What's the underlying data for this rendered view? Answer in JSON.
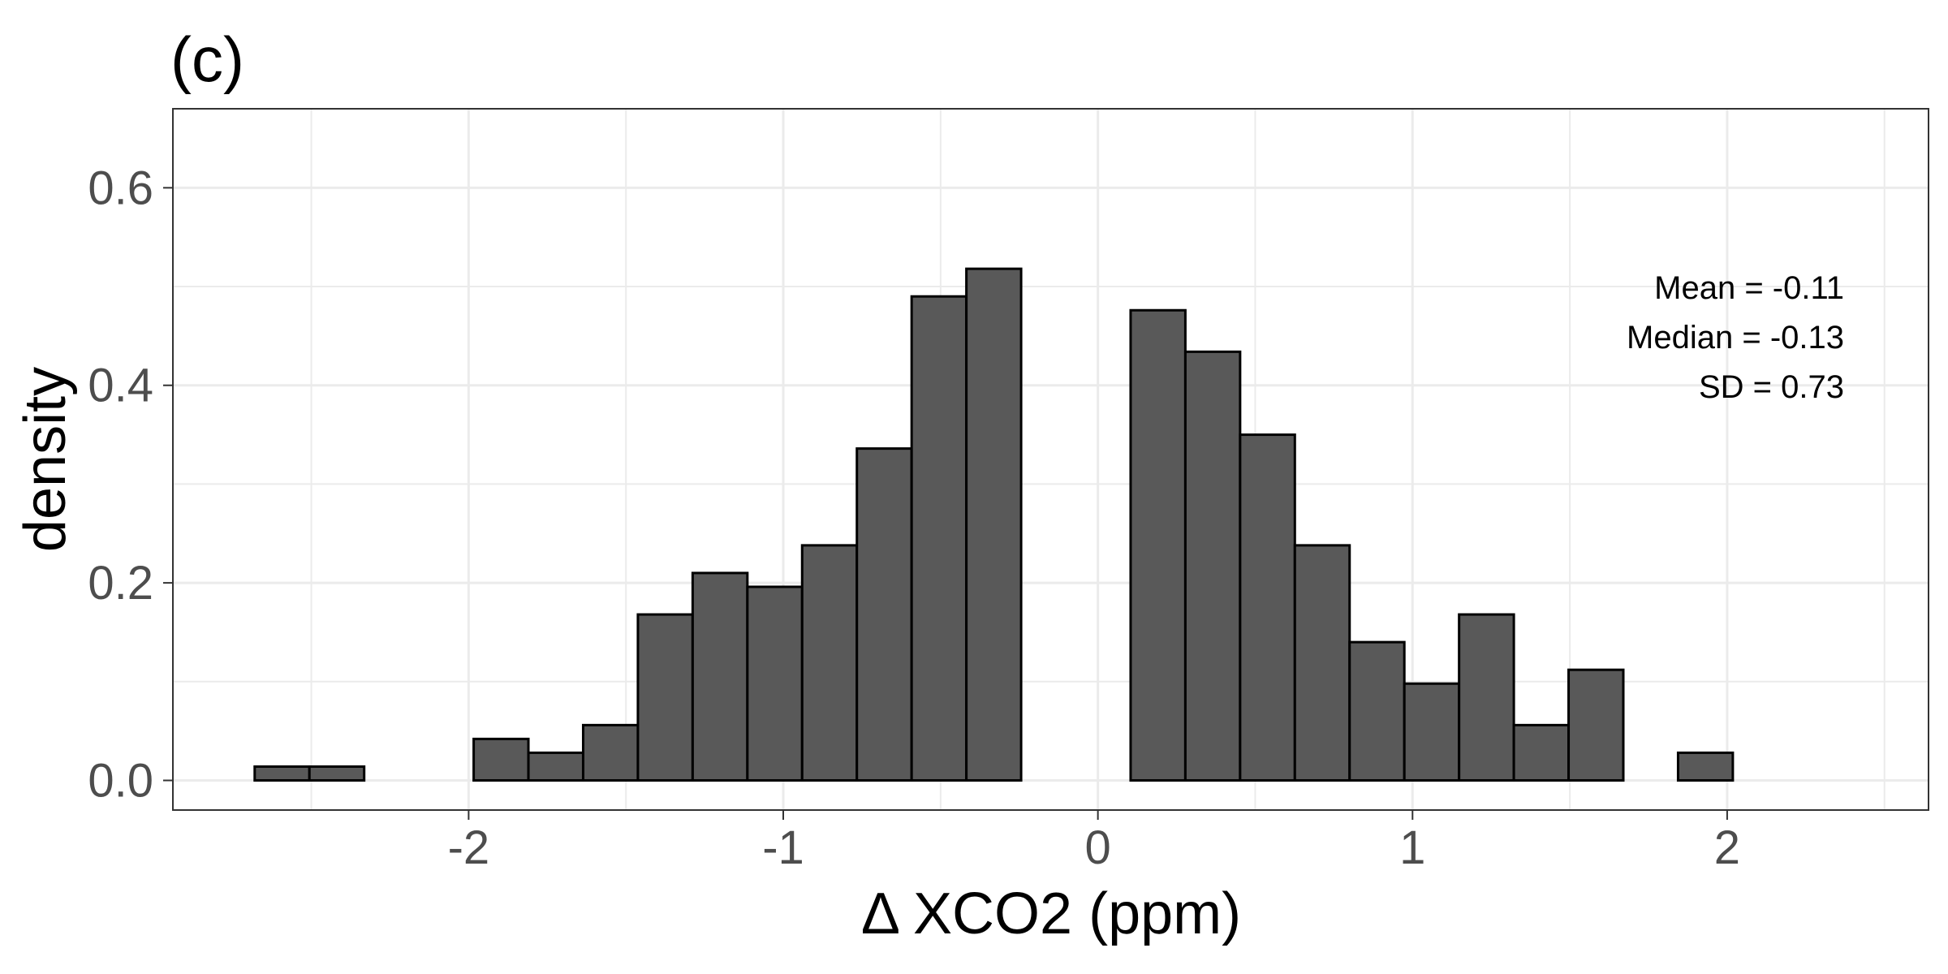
{
  "panel_label": "(c)",
  "colors": {
    "bar_fill": "#595959",
    "bar_stroke": "#000000",
    "grid": "#ebebeb",
    "panel_border": "#333333",
    "tick_text": "#4d4d4d"
  },
  "chart_data": {
    "type": "bar",
    "subtype": "histogram",
    "title": "",
    "xlabel": "Δ XCO2 (ppm)",
    "ylabel": "density",
    "bin_width": 0.174,
    "bin_start": -2.68,
    "xlim": [
      -2.94,
      2.64
    ],
    "ylim": [
      -0.03,
      0.68
    ],
    "x_ticks": [
      -2,
      -1,
      0,
      1,
      2
    ],
    "x_tick_labels": [
      "-2",
      "-1",
      "0",
      "1",
      "2"
    ],
    "y_ticks": [
      0.0,
      0.2,
      0.4,
      0.6
    ],
    "y_tick_labels": [
      "0.0",
      "0.2",
      "0.4",
      "0.6"
    ],
    "values": [
      0.014,
      0.014,
      0.0,
      0.0,
      0.042,
      0.028,
      0.056,
      0.168,
      0.21,
      0.196,
      0.238,
      0.336,
      0.49,
      0.518,
      null,
      null,
      0.476,
      0.434,
      0.35,
      0.238,
      0.14,
      0.098,
      0.168,
      0.056,
      0.112,
      0.0,
      0.028,
      0.0,
      0.0,
      0.0
    ],
    "grid": true,
    "legend": "none",
    "annotations": [
      "Mean = -0.11",
      "Median = -0.13",
      "SD = 0.73"
    ],
    "annotation_placement": "top-right"
  }
}
